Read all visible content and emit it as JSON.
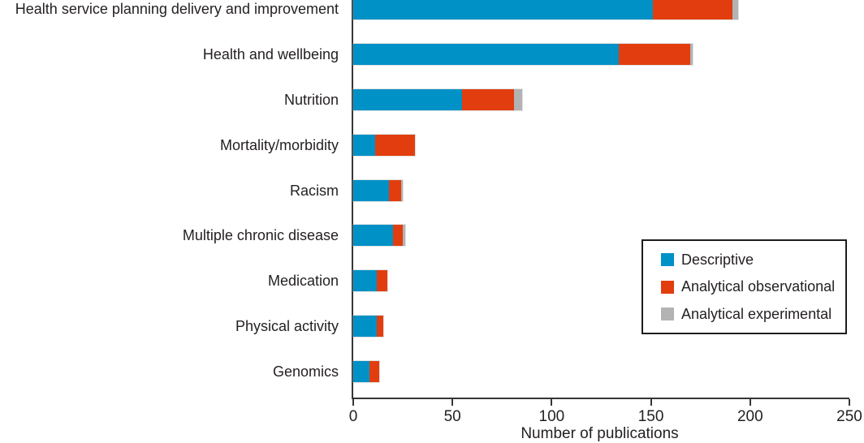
{
  "chart_data": {
    "type": "bar",
    "orientation": "horizontal",
    "title": "",
    "xlabel": "Number of publications",
    "ylabel": "",
    "xlim": [
      0,
      250
    ],
    "x_ticks": [
      0,
      50,
      100,
      150,
      200,
      250
    ],
    "grid": false,
    "legend_position": "middle-right",
    "categories": [
      "Health service planning delivery and improvement",
      "Health and wellbeing",
      "Nutrition",
      "Mortality/morbidity",
      "Racism",
      "Multiple chronic disease",
      "Medication",
      "Physical activity",
      "Genomics"
    ],
    "series": [
      {
        "name": "Descriptive",
        "color": "#0091c7",
        "values": [
          151,
          134,
          55,
          11,
          18,
          20,
          12,
          12,
          8
        ]
      },
      {
        "name": "Analytical observational",
        "color": "#e23d0e",
        "values": [
          40,
          36,
          26,
          20,
          6,
          5,
          5,
          3,
          5
        ]
      },
      {
        "name": "Analytical experimental",
        "color": "#b3b3b3",
        "values": [
          3,
          1,
          4,
          0,
          1,
          1,
          0,
          0,
          0
        ]
      }
    ]
  },
  "colors": {
    "axis": "#363636",
    "text": "#231f20",
    "background": "#ffffff"
  }
}
